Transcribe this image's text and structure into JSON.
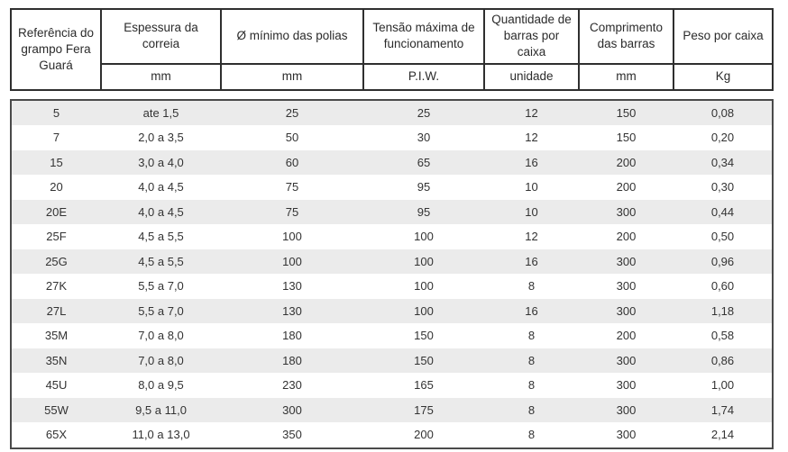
{
  "table": {
    "column_keys": [
      "referencia",
      "espessura",
      "diametro_minimo",
      "tensao_maxima",
      "quantidade",
      "comprimento",
      "peso"
    ],
    "columns": [
      {
        "title": "Referência do grampo Fera Guará",
        "unit": ""
      },
      {
        "title": "Espessura da correia",
        "unit": "mm"
      },
      {
        "title": "Ø mínimo das polias",
        "unit": "mm"
      },
      {
        "title": "Tensão máxima de funcionamento",
        "unit": "P.I.W."
      },
      {
        "title": "Quantidade de barras por caixa",
        "unit": "unidade"
      },
      {
        "title": "Comprimento das barras",
        "unit": "mm"
      },
      {
        "title": "Peso por caixa",
        "unit": "Kg"
      }
    ],
    "rows": [
      [
        "5",
        "ate 1,5",
        "25",
        "25",
        "12",
        "150",
        "0,08"
      ],
      [
        "7",
        "2,0 a 3,5",
        "50",
        "30",
        "12",
        "150",
        "0,20"
      ],
      [
        "15",
        "3,0 a 4,0",
        "60",
        "65",
        "16",
        "200",
        "0,34"
      ],
      [
        "20",
        "4,0 a 4,5",
        "75",
        "95",
        "10",
        "200",
        "0,30"
      ],
      [
        "20E",
        "4,0 a 4,5",
        "75",
        "95",
        "10",
        "300",
        "0,44"
      ],
      [
        "25F",
        "4,5 a 5,5",
        "100",
        "100",
        "12",
        "200",
        "0,50"
      ],
      [
        "25G",
        "4,5 a 5,5",
        "100",
        "100",
        "16",
        "300",
        "0,96"
      ],
      [
        "27K",
        "5,5 a 7,0",
        "130",
        "100",
        "8",
        "300",
        "0,60"
      ],
      [
        "27L",
        "5,5 a 7,0",
        "130",
        "100",
        "16",
        "300",
        "1,18"
      ],
      [
        "35M",
        "7,0 a 8,0",
        "180",
        "150",
        "8",
        "200",
        "0,58"
      ],
      [
        "35N",
        "7,0 a 8,0",
        "180",
        "150",
        "8",
        "300",
        "0,86"
      ],
      [
        "45U",
        "8,0 a 9,5",
        "230",
        "165",
        "8",
        "300",
        "1,00"
      ],
      [
        "55W",
        "9,5 a 11,0",
        "300",
        "175",
        "8",
        "300",
        "1,74"
      ],
      [
        "65X",
        "11,0 a 13,0",
        "350",
        "200",
        "8",
        "300",
        "2,14"
      ]
    ]
  },
  "colors": {
    "stripe_gray": "#ebebeb",
    "header_border": "#2f2f2f",
    "body_border": "#4a4a4a",
    "text": "#333333"
  }
}
